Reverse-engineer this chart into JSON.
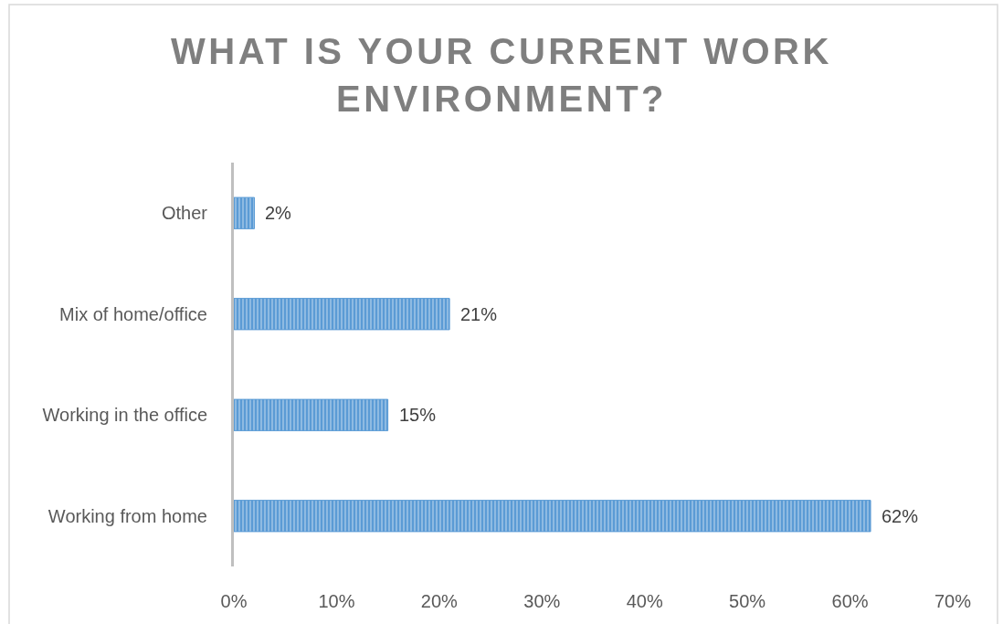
{
  "chart_data": {
    "type": "bar",
    "orientation": "horizontal",
    "title": "WHAT IS YOUR CURRENT WORK ENVIRONMENT?",
    "categories": [
      "Other",
      "Mix of home/office",
      "Working in the office",
      "Working from home"
    ],
    "values": [
      2,
      21,
      15,
      62
    ],
    "color": "#5b9bd5",
    "value_labels": [
      "2%",
      "21%",
      "15%",
      "62%"
    ],
    "xlim": [
      0,
      70
    ],
    "xticks": [
      {
        "value": 0,
        "label": "0%"
      },
      {
        "value": 10,
        "label": "10%"
      },
      {
        "value": 20,
        "label": "20%"
      },
      {
        "value": 30,
        "label": "30%"
      },
      {
        "value": 40,
        "label": "40%"
      },
      {
        "value": 50,
        "label": "50%"
      },
      {
        "value": 60,
        "label": "60%"
      },
      {
        "value": 70,
        "label": "70%"
      }
    ],
    "grid": false
  }
}
